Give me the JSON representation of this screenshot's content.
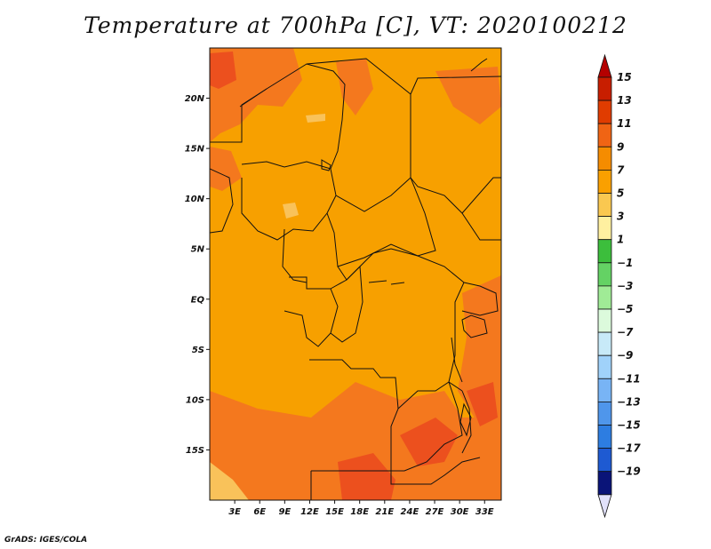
{
  "title": "Temperature at 700hPa [C], VT: 2020100212",
  "credit": "GrADS: IGES/COLA",
  "map": {
    "lon_ticks": [
      {
        "label": "3E",
        "lon": 3
      },
      {
        "label": "6E",
        "lon": 6
      },
      {
        "label": "9E",
        "lon": 9
      },
      {
        "label": "12E",
        "lon": 12
      },
      {
        "label": "15E",
        "lon": 15
      },
      {
        "label": "18E",
        "lon": 18
      },
      {
        "label": "21E",
        "lon": 21
      },
      {
        "label": "24E",
        "lon": 24
      },
      {
        "label": "27E",
        "lon": 27
      },
      {
        "label": "30E",
        "lon": 30
      },
      {
        "label": "33E",
        "lon": 33
      }
    ],
    "lat_ticks": [
      {
        "label": "20N",
        "lat": 20
      },
      {
        "label": "15N",
        "lat": 15
      },
      {
        "label": "10N",
        "lat": 10
      },
      {
        "label": "5N",
        "lat": 5
      },
      {
        "label": "EQ",
        "lat": 0
      },
      {
        "label": "5S",
        "lat": -5
      },
      {
        "label": "10S",
        "lat": -10
      },
      {
        "label": "15S",
        "lat": -15
      }
    ],
    "lon_range": [
      0,
      35
    ],
    "lat_range": [
      -20,
      25
    ]
  },
  "colorbar": {
    "levels": [
      {
        "label": "15",
        "color": "#c81e00"
      },
      {
        "label": "13",
        "color": "#e03c00"
      },
      {
        "label": "11",
        "color": "#f06414"
      },
      {
        "label": "9",
        "color": "#f58c00"
      },
      {
        "label": "7",
        "color": "#faa000"
      },
      {
        "label": "5",
        "color": "#fac850"
      },
      {
        "label": "3",
        "color": "#fff0a0"
      },
      {
        "label": "1",
        "color": "#3cbe3c"
      },
      {
        "label": "-1",
        "color": "#64d264"
      },
      {
        "label": "-3",
        "color": "#a0eb96"
      },
      {
        "label": "-5",
        "color": "#dcfadc"
      },
      {
        "label": "-7",
        "color": "#c8eaf8"
      },
      {
        "label": "-9",
        "color": "#a0d2fa"
      },
      {
        "label": "-11",
        "color": "#78b4f5"
      },
      {
        "label": "-13",
        "color": "#4f96eb"
      },
      {
        "label": "-15",
        "color": "#2d7de1"
      },
      {
        "label": "-17",
        "color": "#1e5ad2"
      },
      {
        "label": "-19",
        "color": "#1437b4"
      }
    ],
    "top_arrow_color": "#b40000",
    "bottom_arrow_color": "#e1e1fa",
    "last_band_color": "#0a1478"
  },
  "field_colors": {
    "base": "#f7a000",
    "warm": "#f4781e",
    "hot": "#ec501e",
    "cool": "#f9c25a"
  }
}
